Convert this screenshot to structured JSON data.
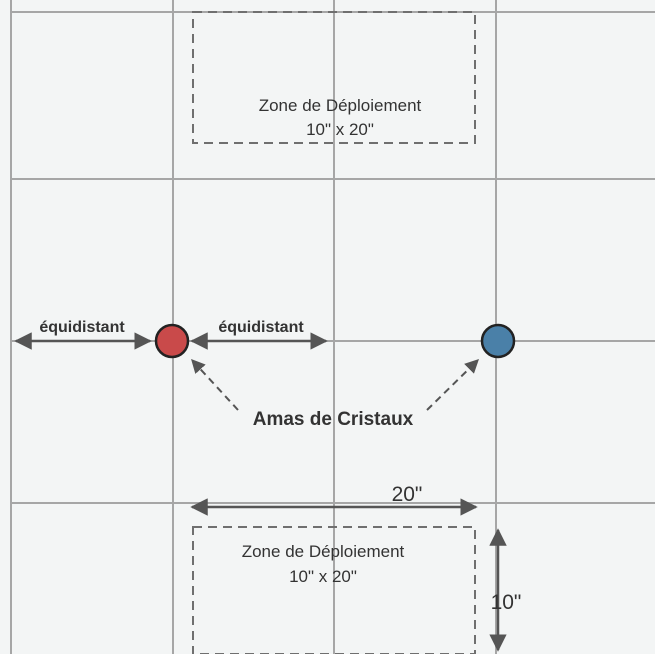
{
  "colors": {
    "background": "#f3f5f5",
    "grid": "#a6a6a6",
    "zone_border": "#6f6f6f",
    "arrow": "#555555",
    "text": "#333333",
    "crystal_red": "#c94a4a",
    "crystal_blue": "#4a80a8",
    "marker_outline": "#222222"
  },
  "zones": {
    "top": {
      "title": "Zone de Déploiement",
      "size": "10\" x 20\""
    },
    "bottom": {
      "title": "Zone de Déploiement",
      "size": "10\" x 20\""
    }
  },
  "labels": {
    "equidistant_left": "équidistant",
    "equidistant_right": "équidistant",
    "crystals": "Amas de Cristaux",
    "width_dimension": "20\"",
    "depth_dimension": "10\""
  },
  "markers": [
    {
      "name": "red-crystal-marker",
      "color": "#c94a4a"
    },
    {
      "name": "blue-crystal-marker",
      "color": "#4a80a8"
    }
  ]
}
